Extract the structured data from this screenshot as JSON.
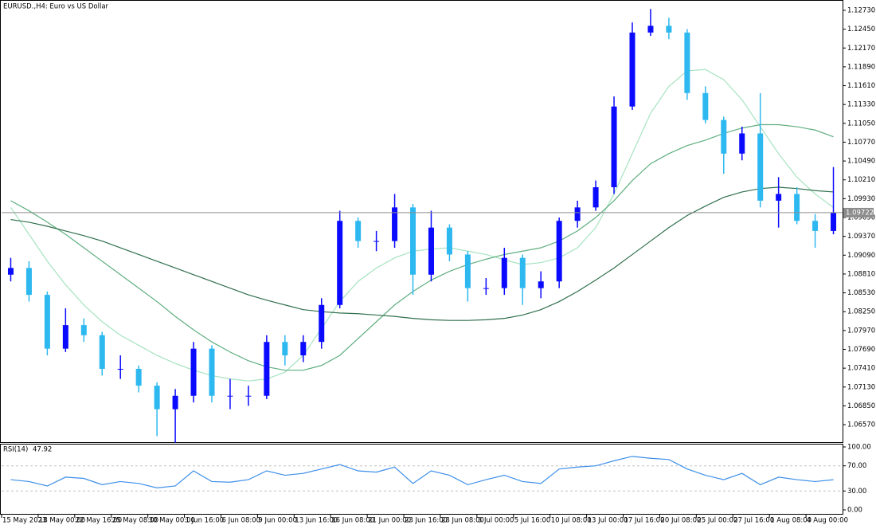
{
  "chart_data": {
    "type": "candlestick",
    "title": "EURUSD.,H4:  Euro vs US Dollar",
    "categories": [
      "15 May 2023",
      null,
      "18 May 00:00",
      null,
      "22 May 16:00",
      null,
      "25 May 08:00",
      null,
      "30 May 00:00",
      null,
      "1 Jun 16:00",
      null,
      "6 Jun 08:00",
      null,
      "9 Jun 00:00",
      null,
      "13 Jun 16:00",
      null,
      "16 Jun 08:00",
      null,
      "21 Jun 00:00",
      null,
      "23 Jun 16:00",
      null,
      "28 Jun 08:00",
      null,
      "3 Jul 00:00",
      null,
      "5 Jul 16:00",
      null,
      "10 Jul 08:00",
      null,
      "13 Jul 00:00",
      null,
      "17 Jul 16:00",
      null,
      "20 Jul 08:00",
      null,
      "25 Jul 00:00",
      null,
      "27 Jul 16:00",
      null,
      "1 Aug 08:00",
      null,
      "4 Aug 00:00",
      null
    ],
    "open": [
      1.088,
      1.089,
      1.085,
      1.077,
      1.0805,
      1.079,
      1.074,
      1.074,
      1.0715,
      1.068,
      1.07,
      1.077,
      1.07,
      1.07,
      1.07,
      1.078,
      1.076,
      1.078,
      1.0835,
      1.096,
      1.093,
      1.093,
      1.098,
      1.088,
      1.095,
      1.091,
      1.086,
      1.086,
      1.0905,
      1.086,
      1.087,
      1.096,
      1.098,
      1.101,
      1.113,
      1.124,
      1.125,
      1.124,
      1.115,
      1.111,
      1.106,
      1.109,
      1.099,
      1.1,
      1.096,
      1.0945
    ],
    "high": [
      1.0905,
      1.09,
      1.0855,
      1.083,
      1.0815,
      1.0795,
      1.076,
      1.0745,
      1.072,
      1.071,
      1.078,
      1.0775,
      1.0725,
      1.0715,
      1.079,
      1.079,
      1.079,
      1.0845,
      1.0975,
      1.0965,
      1.0945,
      1.1,
      1.0985,
      1.0975,
      1.0955,
      1.0915,
      1.0875,
      1.092,
      1.091,
      1.0885,
      1.0965,
      1.099,
      1.102,
      1.1145,
      1.1255,
      1.1275,
      1.1262,
      1.1245,
      1.116,
      1.1115,
      1.11,
      1.115,
      1.1025,
      1.101,
      1.097,
      1.104
    ],
    "low": [
      1.087,
      1.084,
      1.076,
      1.0765,
      1.078,
      1.073,
      1.0725,
      1.0705,
      1.064,
      1.063,
      1.069,
      1.069,
      1.068,
      1.0685,
      1.0695,
      1.0745,
      1.075,
      1.077,
      1.083,
      1.092,
      1.0915,
      1.092,
      1.085,
      1.087,
      1.09,
      1.084,
      1.085,
      1.085,
      1.0835,
      1.0845,
      1.086,
      1.095,
      1.0975,
      1.1,
      1.1125,
      1.1235,
      1.123,
      1.114,
      1.1105,
      1.103,
      1.105,
      1.098,
      1.095,
      1.0955,
      1.092,
      1.094
    ],
    "close": [
      1.089,
      1.085,
      1.077,
      1.0805,
      1.079,
      1.074,
      1.074,
      1.0715,
      1.068,
      1.07,
      1.077,
      1.07,
      1.07,
      1.07,
      1.078,
      1.076,
      1.078,
      1.0835,
      1.096,
      1.093,
      1.093,
      1.098,
      1.088,
      1.095,
      1.091,
      1.086,
      1.086,
      1.0905,
      1.086,
      1.087,
      1.096,
      1.098,
      1.101,
      1.113,
      1.124,
      1.125,
      1.124,
      1.115,
      1.111,
      1.106,
      1.109,
      1.099,
      1.1,
      1.096,
      1.0945,
      1.09722
    ],
    "up_color": "#0a0aff",
    "down_color": "#2eb8f0",
    "price_line_color": "#8c8c8c",
    "series": [
      {
        "color": "#a6e3c0",
        "values": [
          1.098,
          1.094,
          1.09,
          1.0865,
          1.0835,
          1.081,
          1.079,
          1.0775,
          1.076,
          1.0748,
          1.0738,
          1.073,
          1.0725,
          1.0722,
          1.0725,
          1.0735,
          1.076,
          1.08,
          1.084,
          1.087,
          1.089,
          1.0905,
          1.0915,
          1.0918,
          1.092,
          1.0915,
          1.091,
          1.0902,
          1.0895,
          1.0898,
          1.0905,
          1.092,
          1.095,
          1.1,
          1.106,
          1.112,
          1.116,
          1.1183,
          1.1185,
          1.117,
          1.114,
          1.11,
          1.106,
          1.1025,
          1.1,
          1.098
        ]
      },
      {
        "color": "#5fae80",
        "values": [
          1.099,
          1.0975,
          1.0958,
          1.094,
          1.092,
          1.09,
          1.088,
          1.086,
          1.084,
          1.0818,
          1.0798,
          1.078,
          1.0765,
          1.0752,
          1.0743,
          1.0738,
          1.0738,
          1.0745,
          1.076,
          1.0785,
          1.081,
          1.0835,
          1.0855,
          1.0872,
          1.0885,
          1.0895,
          1.0903,
          1.091,
          1.0915,
          1.092,
          1.093,
          1.0945,
          1.0965,
          1.099,
          1.102,
          1.1045,
          1.106,
          1.1072,
          1.108,
          1.109,
          1.1098,
          1.1103,
          1.1103,
          1.11,
          1.1095,
          1.1085
        ]
      },
      {
        "color": "#2f6f4c",
        "values": [
          1.0962,
          1.0958,
          1.0952,
          1.0945,
          1.0938,
          1.093,
          1.092,
          1.091,
          1.09,
          1.089,
          1.088,
          1.087,
          1.086,
          1.085,
          1.0842,
          1.0835,
          1.0828,
          1.0825,
          1.0823,
          1.0822,
          1.082,
          1.0818,
          1.0815,
          1.0813,
          1.0812,
          1.0812,
          1.0813,
          1.0815,
          1.082,
          1.0828,
          1.084,
          1.0855,
          1.0872,
          1.089,
          1.091,
          1.093,
          1.095,
          1.0968,
          1.0982,
          1.0995,
          1.1003,
          1.1008,
          1.101,
          1.1008,
          1.1005,
          1.1003
        ]
      }
    ],
    "ylim": [
      1.0631,
      1.1286
    ],
    "yticks": [
      {
        "value": 1.1273,
        "label": "1.12730"
      },
      {
        "value": 1.1245,
        "label": "1.12450"
      },
      {
        "value": 1.1217,
        "label": "1.12170"
      },
      {
        "value": 1.1189,
        "label": "1.11890"
      },
      {
        "value": 1.1161,
        "label": "1.11610"
      },
      {
        "value": 1.1133,
        "label": "1.11330"
      },
      {
        "value": 1.1105,
        "label": "1.11050"
      },
      {
        "value": 1.1077,
        "label": "1.10770"
      },
      {
        "value": 1.1049,
        "label": "1.10490"
      },
      {
        "value": 1.1021,
        "label": "1.10210"
      },
      {
        "value": 1.0993,
        "label": "1.09930"
      },
      {
        "value": 1.0965,
        "label": "1.09650"
      },
      {
        "value": 1.0937,
        "label": "1.09370"
      },
      {
        "value": 1.0909,
        "label": "1.09090"
      },
      {
        "value": 1.0881,
        "label": "1.08810"
      },
      {
        "value": 1.0853,
        "label": "1.08530"
      },
      {
        "value": 1.0825,
        "label": "1.08250"
      },
      {
        "value": 1.0797,
        "label": "1.07970"
      },
      {
        "value": 1.0769,
        "label": "1.07690"
      },
      {
        "value": 1.0741,
        "label": "1.07410"
      },
      {
        "value": 1.0713,
        "label": "1.07130"
      },
      {
        "value": 1.0685,
        "label": "1.06850"
      },
      {
        "value": 1.0657,
        "label": "1.06570"
      }
    ],
    "indicator": {
      "type": "line",
      "label": "RSI(14)",
      "color": "#3d8fe8",
      "values": [
        48,
        45,
        38,
        52,
        50,
        40,
        45,
        42,
        35,
        38,
        62,
        45,
        44,
        48,
        62,
        55,
        58,
        65,
        72,
        62,
        60,
        68,
        42,
        62,
        55,
        40,
        48,
        55,
        45,
        42,
        65,
        68,
        70,
        78,
        85,
        82,
        80,
        65,
        55,
        48,
        58,
        40,
        52,
        48,
        45,
        47.92
      ],
      "ylim": [
        0,
        100
      ],
      "yticks": [
        {
          "value": 100,
          "label": "100.00"
        },
        {
          "value": 70,
          "label": "70.00"
        },
        {
          "value": 30,
          "label": "30.00"
        },
        {
          "value": 0,
          "label": "0.00"
        }
      ]
    }
  }
}
